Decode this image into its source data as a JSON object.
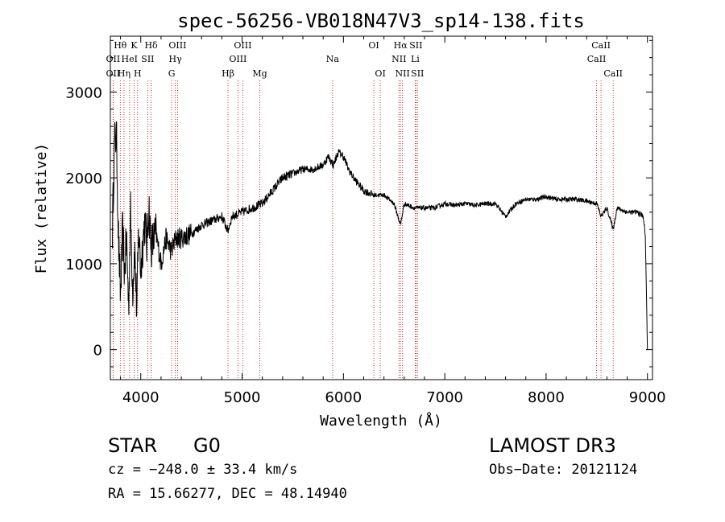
{
  "chart_data": {
    "type": "line",
    "title": "spec-56256-VB018N47V3_sp14-138.fits",
    "xlabel": "Wavelength (Å)",
    "ylabel": "Flux (relative)",
    "xlim": [
      3700,
      9050
    ],
    "ylim": [
      -350,
      3650
    ],
    "xticks": [
      4000,
      5000,
      6000,
      7000,
      8000,
      9000
    ],
    "xtick_labels": [
      "4000",
      "5000",
      "6000",
      "7000",
      "8000",
      "9000"
    ],
    "yticks": [
      0,
      1000,
      2000,
      3000
    ],
    "ytick_labels": [
      "0",
      "1000",
      "2000",
      "3000"
    ],
    "series": [
      {
        "name": "spectrum",
        "x": [
          3720,
          3740,
          3760,
          3780,
          3800,
          3820,
          3840,
          3860,
          3880,
          3900,
          3920,
          3940,
          3960,
          3980,
          4000,
          4020,
          4040,
          4060,
          4080,
          4100,
          4150,
          4200,
          4250,
          4300,
          4350,
          4400,
          4500,
          4600,
          4700,
          4800,
          4860,
          4900,
          5000,
          5100,
          5200,
          5300,
          5400,
          5500,
          5600,
          5700,
          5800,
          5850,
          5900,
          5950,
          6000,
          6050,
          6100,
          6200,
          6300,
          6400,
          6500,
          6563,
          6600,
          6700,
          6800,
          6900,
          7000,
          7100,
          7200,
          7300,
          7400,
          7500,
          7600,
          7700,
          7800,
          7900,
          8000,
          8100,
          8200,
          8300,
          8400,
          8500,
          8542,
          8600,
          8662,
          8700,
          8800,
          8900,
          8960,
          8980,
          9000
        ],
        "y": [
          1400,
          2400,
          2500,
          1300,
          600,
          1400,
          900,
          1300,
          500,
          1600,
          700,
          1200,
          450,
          1400,
          900,
          1250,
          1500,
          1200,
          1700,
          1200,
          1350,
          1000,
          1300,
          1150,
          1300,
          1300,
          1350,
          1450,
          1500,
          1550,
          1380,
          1550,
          1600,
          1650,
          1700,
          1850,
          2000,
          2050,
          2100,
          2100,
          2150,
          2250,
          2150,
          2300,
          2250,
          2100,
          2000,
          1850,
          1800,
          1800,
          1700,
          1450,
          1700,
          1650,
          1650,
          1650,
          1700,
          1680,
          1700,
          1680,
          1700,
          1700,
          1550,
          1700,
          1750,
          1750,
          1780,
          1750,
          1750,
          1750,
          1730,
          1700,
          1550,
          1650,
          1400,
          1650,
          1600,
          1600,
          1550,
          1300,
          0
        ]
      }
    ],
    "line_markers": [
      {
        "label": "OII",
        "wavelength": 3727,
        "row": 3
      },
      {
        "label": "Hθ",
        "wavelength": 3798,
        "row": 1
      },
      {
        "label": "Hη",
        "wavelength": 3835,
        "row": 3
      },
      {
        "label": "OII",
        "wavelength": 3727,
        "row": 2
      },
      {
        "label": "HeI",
        "wavelength": 3889,
        "row": 2
      },
      {
        "label": "K",
        "wavelength": 3934,
        "row": 1
      },
      {
        "label": "H",
        "wavelength": 3969,
        "row": 3
      },
      {
        "label": "SII",
        "wavelength": 4069,
        "row": 2
      },
      {
        "label": "Hδ",
        "wavelength": 4102,
        "row": 1
      },
      {
        "label": "G",
        "wavelength": 4305,
        "row": 3
      },
      {
        "label": "Hγ",
        "wavelength": 4341,
        "row": 2
      },
      {
        "label": "OIII",
        "wavelength": 4363,
        "row": 1
      },
      {
        "label": "Hβ",
        "wavelength": 4861,
        "row": 3
      },
      {
        "label": "OIII",
        "wavelength": 4959,
        "row": 2
      },
      {
        "label": "OIII",
        "wavelength": 5007,
        "row": 1
      },
      {
        "label": "Mg",
        "wavelength": 5175,
        "row": 3
      },
      {
        "label": "Na",
        "wavelength": 5893,
        "row": 2
      },
      {
        "label": "OI",
        "wavelength": 6300,
        "row": 1
      },
      {
        "label": "OI",
        "wavelength": 6364,
        "row": 3
      },
      {
        "label": "NII",
        "wavelength": 6548,
        "row": 2
      },
      {
        "label": "Hα",
        "wavelength": 6563,
        "row": 1
      },
      {
        "label": "NII",
        "wavelength": 6583,
        "row": 3
      },
      {
        "label": "Li",
        "wavelength": 6708,
        "row": 2
      },
      {
        "label": "SII",
        "wavelength": 6716,
        "row": 1
      },
      {
        "label": "SII",
        "wavelength": 6731,
        "row": 3
      },
      {
        "label": "CaII",
        "wavelength": 8498,
        "row": 2
      },
      {
        "label": "CaII",
        "wavelength": 8542,
        "row": 1
      },
      {
        "label": "CaII",
        "wavelength": 8662,
        "row": 3
      }
    ]
  },
  "info": {
    "class": "STAR",
    "subclass": "G0",
    "survey": "LAMOST DR3",
    "cz": "cz = −248.0 ± 33.4 km/s",
    "obs_date": "Obs−Date: 20121124",
    "coords": "RA =  15.66277, DEC =  48.14940"
  }
}
